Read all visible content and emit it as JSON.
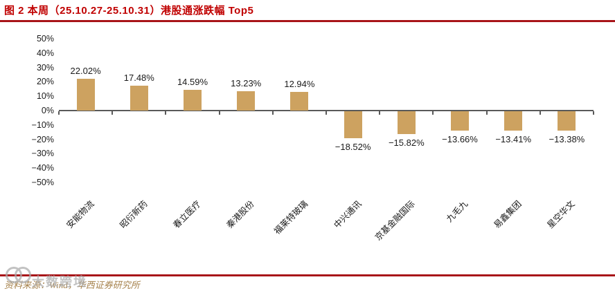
{
  "header": {
    "title": "图 2  本周（25.10.27-25.10.31）港股通涨跌幅 Top5"
  },
  "chart_data": {
    "type": "bar",
    "title": "本周（25.10.27-25.10.31）港股通涨跌幅 Top5",
    "categories": [
      "安能物流",
      "昭衍新药",
      "春立医疗",
      "秦港股份",
      "福莱特玻璃",
      "中兴通讯",
      "京基金融国际",
      "九毛九",
      "易鑫集团",
      "星空华文"
    ],
    "values": [
      22.02,
      17.48,
      14.59,
      13.23,
      12.94,
      -18.52,
      -15.82,
      -13.66,
      -13.41,
      -13.38
    ],
    "value_labels": [
      "22.02%",
      "17.48%",
      "14.59%",
      "13.23%",
      "12.94%",
      "−18.52%",
      "−15.82%",
      "−13.66%",
      "−13.41%",
      "−13.38%"
    ],
    "xlabel": "",
    "ylabel": "",
    "ylim": [
      -50,
      50
    ],
    "ytick_values": [
      50,
      40,
      30,
      20,
      10,
      0,
      -10,
      -20,
      -30,
      -40,
      -50
    ],
    "ytick_labels": [
      "50%",
      "40%",
      "30%",
      "20%",
      "10%",
      "0%",
      "−10%",
      "−20%",
      "−30%",
      "−40%",
      "−50%"
    ],
    "grid": false,
    "legend": "none",
    "bar_color": "#CDA260",
    "axis_color": "#595959"
  },
  "footer": {
    "source": "资料来源：Wind，华西证券研究所",
    "watermark": "大数跨境"
  },
  "colors": {
    "title_red": "#C00000",
    "rule_red": "#A81418",
    "bar": "#CDA260",
    "axis": "#595959",
    "value_text": "#1A1A1A",
    "source_text": "#A6824C",
    "watermark": "#ABABAB"
  }
}
